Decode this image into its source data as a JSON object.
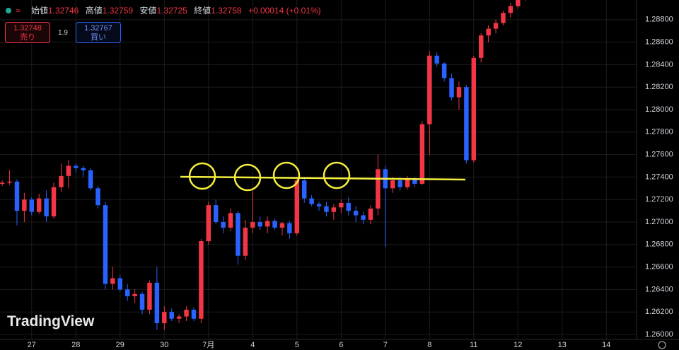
{
  "header": {
    "open_label": "始値",
    "open": "1.32746",
    "high_label": "高値",
    "high": "1.32759",
    "low_label": "安値",
    "low": "1.32725",
    "close_label": "終値",
    "close": "1.32758",
    "change": "+0.00014 (+0.01%)"
  },
  "trade": {
    "sell_price": "1.32748",
    "sell_label": "売り",
    "spread": "1.9",
    "buy_price": "1.32767",
    "buy_label": "買い"
  },
  "brand": "TradingView",
  "chart_data": {
    "type": "candlestick",
    "open": [
      1.2734,
      1.2735,
      1.2736,
      1.271,
      1.272,
      1.2709,
      1.2721,
      1.2705,
      1.2731,
      1.2741,
      1.275,
      1.2748,
      1.2746,
      1.273,
      1.2715,
      1.2645,
      1.265,
      1.264,
      1.2634,
      1.2636,
      1.2622,
      1.2646,
      1.261,
      1.262,
      1.2614,
      1.2616,
      1.2622,
      1.2614,
      1.2683,
      1.2715,
      1.27,
      1.2695,
      1.2708,
      1.267,
      1.2695,
      1.27,
      1.2696,
      1.2701,
      1.2695,
      1.2699,
      1.269,
      1.2737,
      1.2721,
      1.2716,
      1.2714,
      1.2709,
      1.2713,
      1.2717,
      1.271,
      1.2706,
      1.2702,
      1.2712,
      1.2747,
      1.273,
      1.2737,
      1.2731,
      1.2738,
      1.2734,
      1.2787,
      1.2848,
      1.2841,
      1.2828,
      1.2811,
      1.282,
      1.2755,
      1.2846,
      1.2866,
      1.2872,
      1.2877,
      1.2886,
      1.2892,
      1.2899
    ],
    "high": [
      1.2737,
      1.2746,
      1.2738,
      1.2726,
      1.2722,
      1.2725,
      1.2728,
      1.2735,
      1.2752,
      1.2755,
      1.2752,
      1.275,
      1.2748,
      1.2732,
      1.2718,
      1.266,
      1.2653,
      1.2645,
      1.264,
      1.2638,
      1.2648,
      1.266,
      1.2625,
      1.2623,
      1.2618,
      1.2625,
      1.2624,
      1.2685,
      1.2718,
      1.272,
      1.2705,
      1.2712,
      1.271,
      1.2702,
      1.2728,
      1.2705,
      1.2705,
      1.2703,
      1.27,
      1.2701,
      1.2738,
      1.274,
      1.2724,
      1.2718,
      1.2718,
      1.2716,
      1.272,
      1.2722,
      1.2714,
      1.2709,
      1.2715,
      1.276,
      1.275,
      1.274,
      1.274,
      1.2741,
      1.274,
      1.279,
      1.2852,
      1.2851,
      1.2842,
      1.2832,
      1.2825,
      1.2822,
      1.2848,
      1.2868,
      1.2875,
      1.288,
      1.2888,
      1.2895,
      1.2902,
      1.2905
    ],
    "low": [
      1.2732,
      1.2733,
      1.2697,
      1.27,
      1.2706,
      1.2707,
      1.27,
      1.2703,
      1.2727,
      1.273,
      1.2744,
      1.274,
      1.2728,
      1.2712,
      1.264,
      1.264,
      1.2638,
      1.263,
      1.2628,
      1.2618,
      1.2618,
      1.2604,
      1.2604,
      1.2612,
      1.261,
      1.2612,
      1.2612,
      1.261,
      1.268,
      1.2698,
      1.269,
      1.2692,
      1.2662,
      1.2666,
      1.269,
      1.2693,
      1.269,
      1.2693,
      1.2688,
      1.2685,
      1.2688,
      1.2717,
      1.2714,
      1.271,
      1.2705,
      1.2702,
      1.2708,
      1.2706,
      1.27,
      1.2698,
      1.2698,
      1.2706,
      1.2678,
      1.2726,
      1.2728,
      1.2729,
      1.2731,
      1.2733,
      1.276,
      1.2838,
      1.2825,
      1.2808,
      1.28,
      1.2752,
      1.2753,
      1.2842,
      1.286,
      1.2868,
      1.2875,
      1.2882,
      1.289,
      1.2897
    ],
    "close": [
      1.2735,
      1.2736,
      1.271,
      1.272,
      1.2709,
      1.2721,
      1.2705,
      1.2731,
      1.2741,
      1.275,
      1.2748,
      1.2746,
      1.273,
      1.2715,
      1.2645,
      1.265,
      1.264,
      1.2634,
      1.2636,
      1.2622,
      1.2646,
      1.261,
      1.262,
      1.2614,
      1.2616,
      1.2622,
      1.2614,
      1.2683,
      1.2715,
      1.27,
      1.2695,
      1.2708,
      1.267,
      1.2695,
      1.27,
      1.2696,
      1.2701,
      1.2695,
      1.2699,
      1.269,
      1.2737,
      1.2721,
      1.2716,
      1.2714,
      1.2709,
      1.2713,
      1.2717,
      1.271,
      1.2706,
      1.2702,
      1.2712,
      1.2747,
      1.273,
      1.2737,
      1.2731,
      1.2738,
      1.2734,
      1.2787,
      1.2848,
      1.2841,
      1.2828,
      1.2811,
      1.282,
      1.2755,
      1.2846,
      1.2866,
      1.2872,
      1.2877,
      1.2886,
      1.2892,
      1.2899,
      1.2903
    ],
    "up_color": "#f23645",
    "down_color": "#2962ff",
    "xlim": [
      -0.3,
      86.1
    ],
    "xticks": [
      {
        "value": 4,
        "label": "27"
      },
      {
        "value": 10,
        "label": "28"
      },
      {
        "value": 16,
        "label": "29"
      },
      {
        "value": 22,
        "label": "30"
      },
      {
        "value": 28,
        "label": "7月"
      },
      {
        "value": 34,
        "label": "4"
      },
      {
        "value": 40,
        "label": "5"
      },
      {
        "value": 46,
        "label": "6"
      },
      {
        "value": 52,
        "label": "7"
      },
      {
        "value": 58,
        "label": "8"
      },
      {
        "value": 64,
        "label": "11"
      },
      {
        "value": 70,
        "label": "12"
      },
      {
        "value": 76,
        "label": "13"
      },
      {
        "value": 82,
        "label": "14"
      }
    ],
    "ylim": [
      1.25956,
      1.28975
    ],
    "yticks": [
      {
        "value": 1.26,
        "label": "1.26000"
      },
      {
        "value": 1.262,
        "label": "1.26200"
      },
      {
        "value": 1.264,
        "label": "1.26400"
      },
      {
        "value": 1.266,
        "label": "1.26600"
      },
      {
        "value": 1.268,
        "label": "1.26800"
      },
      {
        "value": 1.27,
        "label": "1.27000"
      },
      {
        "value": 1.272,
        "label": "1.27200"
      },
      {
        "value": 1.274,
        "label": "1.27400"
      },
      {
        "value": 1.276,
        "label": "1.27600"
      },
      {
        "value": 1.278,
        "label": "1.27800"
      },
      {
        "value": 1.28,
        "label": "1.28000"
      },
      {
        "value": 1.282,
        "label": "1.28200"
      },
      {
        "value": 1.284,
        "label": "1.28400"
      },
      {
        "value": 1.286,
        "label": "1.28600"
      },
      {
        "value": 1.288,
        "label": "1.28800"
      }
    ],
    "grid": true
  }
}
